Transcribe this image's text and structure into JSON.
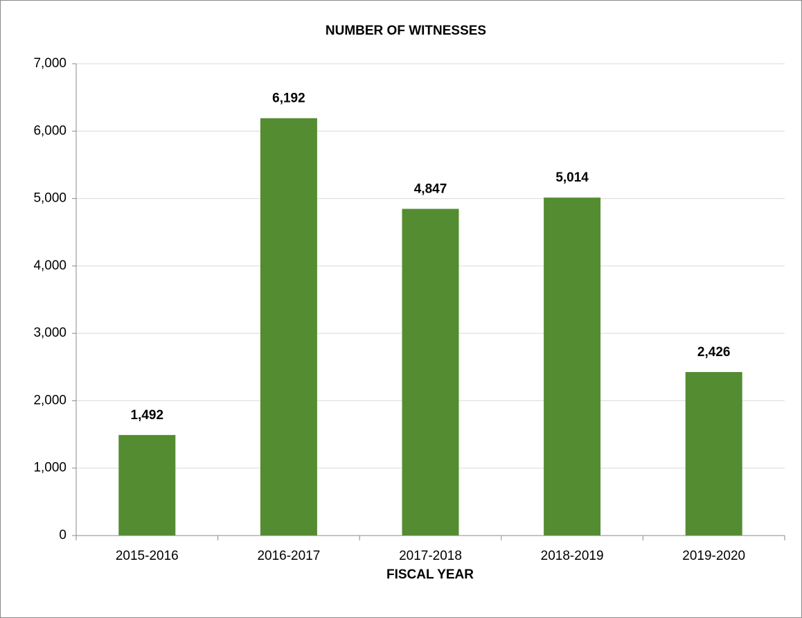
{
  "chart_data": {
    "type": "bar",
    "title": "NUMBER OF WITNESSES",
    "x_label": "FISCAL YEAR",
    "categories": [
      "2015-2016",
      "2016-2017",
      "2017-2018",
      "2018-2019",
      "2019-2020"
    ],
    "values": [
      1492,
      6192,
      4847,
      5014,
      2426
    ],
    "value_labels": [
      "1,492",
      "6,192",
      "4,847",
      "5,014",
      "2,426"
    ],
    "color": "#548c31",
    "ylim": [
      0,
      7000
    ],
    "yticks": [
      0,
      {
        "value": 1000,
        "label": "1,000"
      },
      {
        "value": 2000,
        "label": "2,000"
      },
      {
        "value": 3000,
        "label": "3,000"
      },
      {
        "value": 4000,
        "label": "4,000"
      },
      {
        "value": 5000,
        "label": "5,000"
      },
      {
        "value": 6000,
        "label": "6,000"
      },
      {
        "value": 7000,
        "label": "7,000"
      }
    ],
    "grid": true
  }
}
